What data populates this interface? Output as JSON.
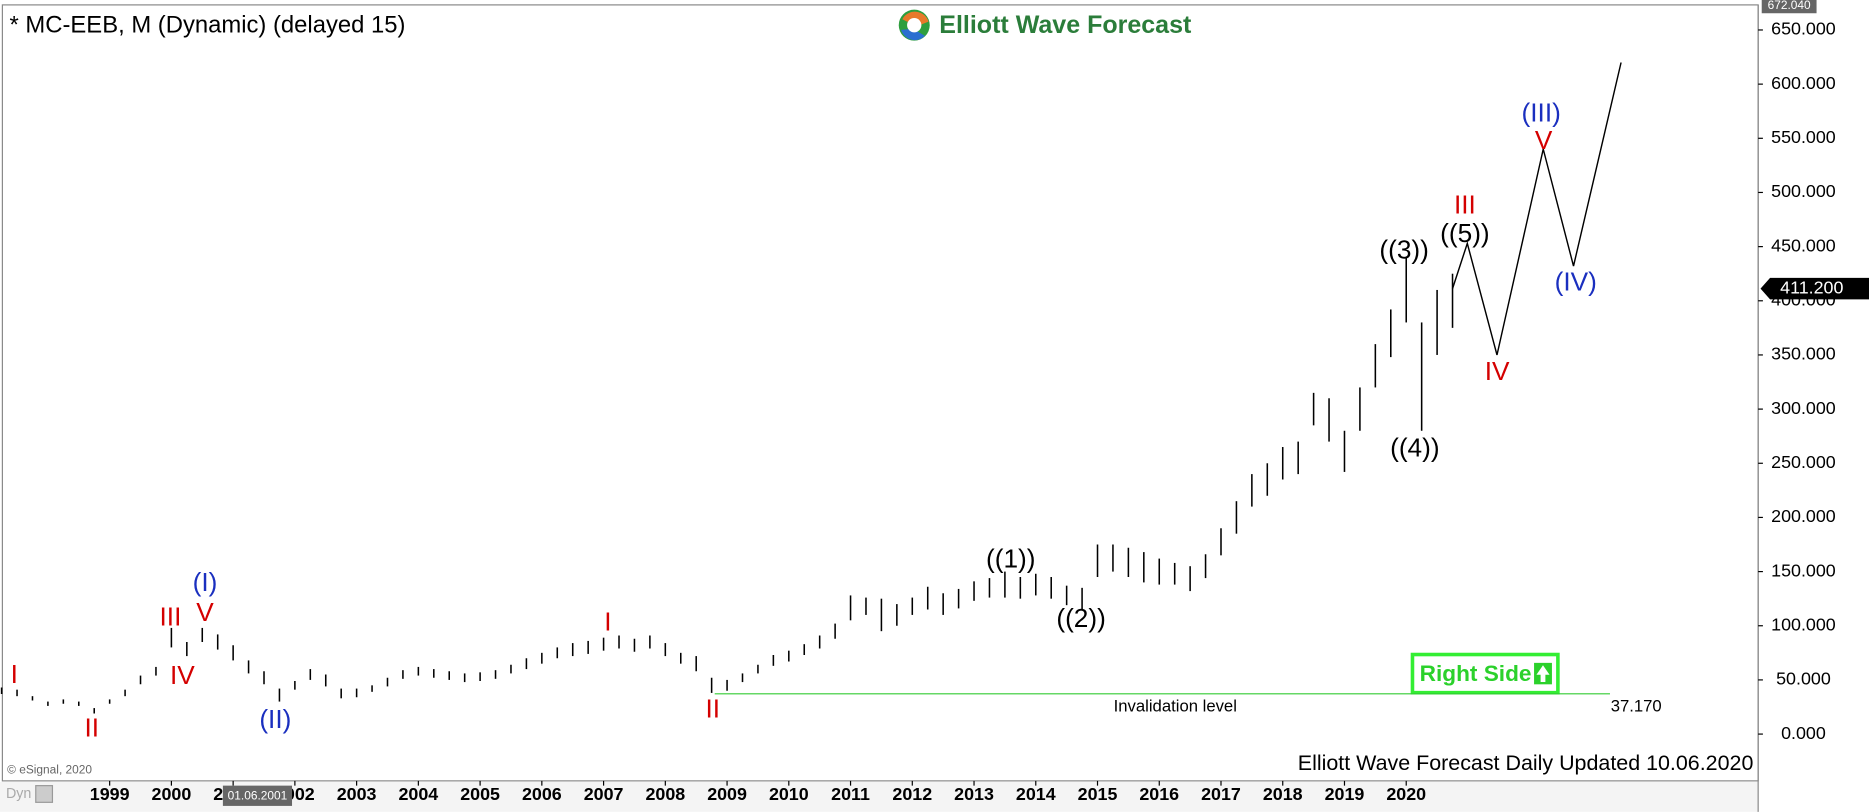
{
  "chart_data": {
    "type": "ohlc",
    "title": "* MC-EEB, M (Dynamic) (delayed 15)",
    "brand": "Elliott Wave Forecast",
    "footer": "Elliott Wave Forecast Daily Updated 10.06.2020",
    "copyright": "© eSignal, 2020",
    "mode_label": "Dyn",
    "cursor_label": "01.06.2001",
    "badge": "Right Side",
    "color": "#000000",
    "x": [
      1997.25,
      1997.5,
      1997.75,
      1998,
      1998.25,
      1998.5,
      1998.75,
      1999,
      1999.25,
      1999.5,
      1999.75,
      2000,
      2000.25,
      2000.5,
      2000.75,
      2001,
      2001.25,
      2001.5,
      2001.75,
      2002,
      2002.25,
      2002.5,
      2002.75,
      2003,
      2003.25,
      2003.5,
      2003.75,
      2004,
      2004.25,
      2004.5,
      2004.75,
      2005,
      2005.25,
      2005.5,
      2005.75,
      2006,
      2006.25,
      2006.5,
      2006.75,
      2007,
      2007.25,
      2007.5,
      2007.75,
      2008,
      2008.25,
      2008.5,
      2008.75,
      2009,
      2009.25,
      2009.5,
      2009.75,
      2010,
      2010.25,
      2010.5,
      2010.75,
      2011,
      2011.25,
      2011.5,
      2011.75,
      2012,
      2012.25,
      2012.5,
      2012.75,
      2013,
      2013.25,
      2013.5,
      2013.75,
      2014,
      2014.25,
      2014.5,
      2014.75,
      2015,
      2015.25,
      2015.5,
      2015.75,
      2016,
      2016.25,
      2016.5,
      2016.75,
      2017,
      2017.25,
      2017.5,
      2017.75,
      2018,
      2018.25,
      2018.5,
      2018.75,
      2019,
      2019.25,
      2019.5,
      2019.75,
      2020,
      2020.25,
      2020.5,
      2020.75
    ],
    "high": [
      43,
      41,
      35,
      30,
      32,
      30,
      24,
      32,
      41,
      54,
      62,
      98,
      85,
      98,
      92,
      82,
      68,
      58,
      42,
      49,
      60,
      55,
      42,
      42,
      45,
      52,
      59,
      62,
      60,
      58,
      56,
      57,
      59,
      64,
      70,
      75,
      80,
      84,
      86,
      89,
      91,
      88,
      91,
      84,
      75,
      72,
      52,
      50,
      56,
      64,
      73,
      77,
      83,
      91,
      102,
      128,
      126,
      125,
      120,
      126,
      136,
      130,
      134,
      141,
      144,
      150,
      145,
      148,
      145,
      137,
      135,
      175,
      175,
      172,
      168,
      162,
      158,
      155,
      166,
      190,
      215,
      240,
      250,
      265,
      270,
      315,
      310,
      280,
      320,
      360,
      392,
      440,
      380,
      410,
      425
    ],
    "low": [
      37,
      35,
      31,
      26,
      28,
      26,
      19,
      28,
      35,
      46,
      54,
      80,
      72,
      85,
      78,
      68,
      56,
      46,
      30,
      41,
      50,
      44,
      33,
      34,
      39,
      44,
      51,
      54,
      52,
      50,
      48,
      49,
      51,
      56,
      60,
      65,
      70,
      72,
      74,
      77,
      79,
      76,
      79,
      72,
      65,
      58,
      38,
      40,
      48,
      56,
      63,
      67,
      73,
      79,
      88,
      105,
      110,
      95,
      100,
      110,
      115,
      110,
      116,
      123,
      126,
      126,
      125,
      128,
      125,
      119,
      115,
      145,
      150,
      145,
      140,
      138,
      138,
      132,
      144,
      165,
      185,
      210,
      220,
      235,
      240,
      285,
      270,
      242,
      280,
      320,
      348,
      380,
      280,
      350,
      375
    ],
    "projection": {
      "x": [
        2020.75,
        2020.99,
        2021.47,
        2022.22,
        2022.71,
        2023.48
      ],
      "values": [
        411.2,
        453,
        350,
        540,
        432,
        620
      ],
      "color": "#000000"
    },
    "invalidation": {
      "label": "Invalidation level",
      "value": 37.17,
      "value_label": "37.170",
      "x": [
        2008.8,
        2023.3
      ],
      "color": "#33cc33"
    },
    "last_price": {
      "value": 411.2,
      "label": "411.200"
    },
    "max_marker": {
      "value": 672.04,
      "label": "672.040"
    },
    "wave_labels": [
      {
        "text": "I",
        "color": "#d40000"
      },
      {
        "text": "II",
        "color": "#d40000"
      },
      {
        "text": "III",
        "color": "#d40000"
      },
      {
        "text": "IV",
        "color": "#d40000"
      },
      {
        "text": "V",
        "color": "#d40000"
      },
      {
        "text": "(I)",
        "color": "#1a2fbf"
      },
      {
        "text": "(II)",
        "color": "#1a2fbf"
      },
      {
        "text": "I",
        "color": "#d40000"
      },
      {
        "text": "II",
        "color": "#d40000"
      },
      {
        "text": "((1))",
        "color": "#000000"
      },
      {
        "text": "((2))",
        "color": "#000000"
      },
      {
        "text": "((3))",
        "color": "#000000"
      },
      {
        "text": "((4))",
        "color": "#000000"
      },
      {
        "text": "((5))",
        "color": "#000000"
      },
      {
        "text": "III",
        "color": "#d40000"
      },
      {
        "text": "IV",
        "color": "#d40000"
      },
      {
        "text": "(III)",
        "color": "#1a2fbf"
      },
      {
        "text": "V",
        "color": "#d40000"
      },
      {
        "text": "(IV)",
        "color": "#1a2fbf"
      }
    ],
    "xlim": [
      1997.224,
      2025.7
    ],
    "ylim": [
      -43.2,
      672.04
    ],
    "xticks": [
      1999,
      2000,
      2001,
      2002,
      2003,
      2004,
      2005,
      2006,
      2007,
      2008,
      2009,
      2010,
      2011,
      2012,
      2013,
      2014,
      2015,
      2016,
      2017,
      2018,
      2019,
      2020
    ],
    "yticks": [
      {
        "value": 0,
        "label": "0.000"
      },
      {
        "value": 50,
        "label": "50.000"
      },
      {
        "value": 100,
        "label": "100.000"
      },
      {
        "value": 150,
        "label": "150.000"
      },
      {
        "value": 200,
        "label": "200.000"
      },
      {
        "value": 250,
        "label": "250.000"
      },
      {
        "value": 300,
        "label": "300.000"
      },
      {
        "value": 350,
        "label": "350.000"
      },
      {
        "value": 400,
        "label": "400.000"
      },
      {
        "value": 450,
        "label": "450.000"
      },
      {
        "value": 500,
        "label": "500.000"
      },
      {
        "value": 550,
        "label": "550.000"
      },
      {
        "value": 600,
        "label": "600.000"
      },
      {
        "value": 650,
        "label": "650.000"
      }
    ],
    "grid": false
  }
}
